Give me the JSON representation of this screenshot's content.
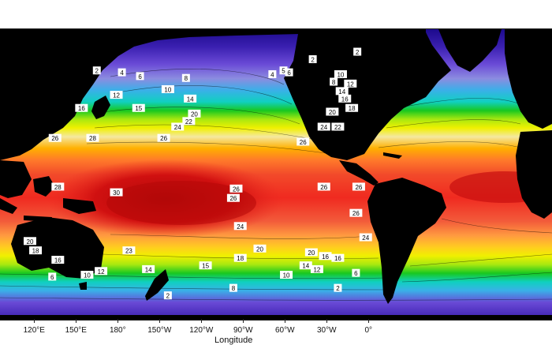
{
  "map": {
    "xaxis": {
      "title": "Longitude",
      "ticks": [
        "120°E",
        "150°E",
        "180°",
        "150°W",
        "120°W",
        "90°W",
        "60°W",
        "30°W",
        "0°"
      ]
    },
    "contour_labels": [
      {
        "text": "2",
        "lon": 165,
        "lat": 58
      },
      {
        "text": "2",
        "lon": 216,
        "lat": -62
      },
      {
        "text": "2",
        "lon": 320,
        "lat": 64
      },
      {
        "text": "2",
        "lon": 352,
        "lat": 68
      },
      {
        "text": "2",
        "lon": 338,
        "lat": -58
      },
      {
        "text": "4",
        "lon": 183,
        "lat": 57
      },
      {
        "text": "4",
        "lon": 291,
        "lat": 56
      },
      {
        "text": "5",
        "lon": 299,
        "lat": 58
      },
      {
        "text": "6",
        "lon": 196,
        "lat": 55
      },
      {
        "text": "6",
        "lon": 303,
        "lat": 57
      },
      {
        "text": "6",
        "lon": 133,
        "lat": -52
      },
      {
        "text": "6",
        "lon": 351,
        "lat": -50
      },
      {
        "text": "8",
        "lon": 229,
        "lat": 54
      },
      {
        "text": "8",
        "lon": 335,
        "lat": 52
      },
      {
        "text": "8",
        "lon": 263,
        "lat": -58
      },
      {
        "text": "10",
        "lon": 216,
        "lat": 48
      },
      {
        "text": "10",
        "lon": 340,
        "lat": 56
      },
      {
        "text": "10",
        "lon": 158,
        "lat": -51
      },
      {
        "text": "10",
        "lon": 301,
        "lat": -51
      },
      {
        "text": "12",
        "lon": 179,
        "lat": 45
      },
      {
        "text": "12",
        "lon": 347,
        "lat": 51
      },
      {
        "text": "12",
        "lon": 168,
        "lat": -49
      },
      {
        "text": "12",
        "lon": 323,
        "lat": -48
      },
      {
        "text": "14",
        "lon": 232,
        "lat": 43
      },
      {
        "text": "14",
        "lon": 341,
        "lat": 47
      },
      {
        "text": "14",
        "lon": 202,
        "lat": -48
      },
      {
        "text": "14",
        "lon": 315,
        "lat": -46
      },
      {
        "text": "15",
        "lon": 195,
        "lat": 38
      },
      {
        "text": "15",
        "lon": 243,
        "lat": -46
      },
      {
        "text": "16",
        "lon": 154,
        "lat": 38
      },
      {
        "text": "16",
        "lon": 343,
        "lat": 43
      },
      {
        "text": "16",
        "lon": 137,
        "lat": -43
      },
      {
        "text": "16",
        "lon": 338,
        "lat": -42
      },
      {
        "text": "16",
        "lon": 329,
        "lat": -41
      },
      {
        "text": "18",
        "lon": 348,
        "lat": 38
      },
      {
        "text": "18",
        "lon": 268,
        "lat": -42
      },
      {
        "text": "18",
        "lon": 121,
        "lat": -38
      },
      {
        "text": "20",
        "lon": 235,
        "lat": 35
      },
      {
        "text": "20",
        "lon": 334,
        "lat": 36
      },
      {
        "text": "20",
        "lon": 117,
        "lat": -33
      },
      {
        "text": "20",
        "lon": 282,
        "lat": -37
      },
      {
        "text": "20",
        "lon": 319,
        "lat": -39
      },
      {
        "text": "22",
        "lon": 231,
        "lat": 31
      },
      {
        "text": "22",
        "lon": 338,
        "lat": 28
      },
      {
        "text": "23",
        "lon": 188,
        "lat": -38
      },
      {
        "text": "24",
        "lon": 223,
        "lat": 28
      },
      {
        "text": "24",
        "lon": 328,
        "lat": 28
      },
      {
        "text": "24",
        "lon": 268,
        "lat": -25
      },
      {
        "text": "24",
        "lon": 358,
        "lat": -31
      },
      {
        "text": "26",
        "lon": 135,
        "lat": 22
      },
      {
        "text": "26",
        "lon": 213,
        "lat": 22
      },
      {
        "text": "26",
        "lon": 313,
        "lat": 20
      },
      {
        "text": "26",
        "lon": 265,
        "lat": -5
      },
      {
        "text": "26",
        "lon": 263,
        "lat": -10
      },
      {
        "text": "26",
        "lon": 328,
        "lat": -4
      },
      {
        "text": "26",
        "lon": 353,
        "lat": -4
      },
      {
        "text": "26",
        "lon": 351,
        "lat": -18
      },
      {
        "text": "28",
        "lon": 162,
        "lat": 22
      },
      {
        "text": "28",
        "lon": 137,
        "lat": -4
      },
      {
        "text": "30",
        "lon": 179,
        "lat": -7
      }
    ]
  }
}
